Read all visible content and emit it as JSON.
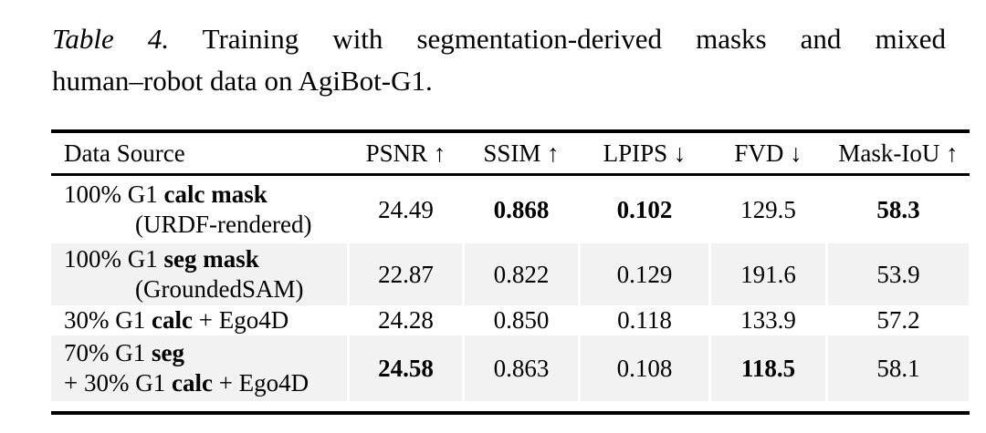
{
  "caption": {
    "label": "Table 4.",
    "line1_rest": "Training with segmentation-derived masks and mixed",
    "line2": "human–robot data on AgiBot-G1."
  },
  "table": {
    "columns": [
      "Data Source",
      "PSNR ↑",
      "SSIM ↑",
      "LPIPS ↓",
      "FVD ↓",
      "Mask-IoU ↑"
    ],
    "rows": [
      {
        "line1": {
          "pre": "100% G1 ",
          "bold": "calc mask",
          "post": ""
        },
        "line2": {
          "pre": "",
          "bold": "",
          "post": "(URDF-rendered)"
        },
        "values": [
          "24.49",
          "0.868",
          "0.102",
          "129.5",
          "58.3"
        ],
        "bold_values": [
          false,
          true,
          true,
          false,
          true
        ],
        "shaded": false
      },
      {
        "line1": {
          "pre": "100% G1 ",
          "bold": "seg mask",
          "post": ""
        },
        "line2": {
          "pre": "",
          "bold": "",
          "post": "(GroundedSAM)"
        },
        "values": [
          "22.87",
          "0.822",
          "0.129",
          "191.6",
          "53.9"
        ],
        "bold_values": [
          false,
          false,
          false,
          false,
          false
        ],
        "shaded": true
      },
      {
        "line1": {
          "pre": "30% G1 ",
          "bold": "calc",
          "post": " + Ego4D"
        },
        "values": [
          "24.28",
          "0.850",
          "0.118",
          "133.9",
          "57.2"
        ],
        "bold_values": [
          false,
          false,
          false,
          false,
          false
        ],
        "shaded": false
      },
      {
        "line1": {
          "pre": "70% G1 ",
          "bold": "seg",
          "post": ""
        },
        "line2": {
          "pre": "+ 30% G1 ",
          "bold": "calc",
          "post": " + Ego4D"
        },
        "values": [
          "24.58",
          "0.863",
          "0.108",
          "118.5",
          "58.1"
        ],
        "bold_values": [
          true,
          false,
          false,
          true,
          false
        ],
        "shaded": true
      }
    ]
  }
}
